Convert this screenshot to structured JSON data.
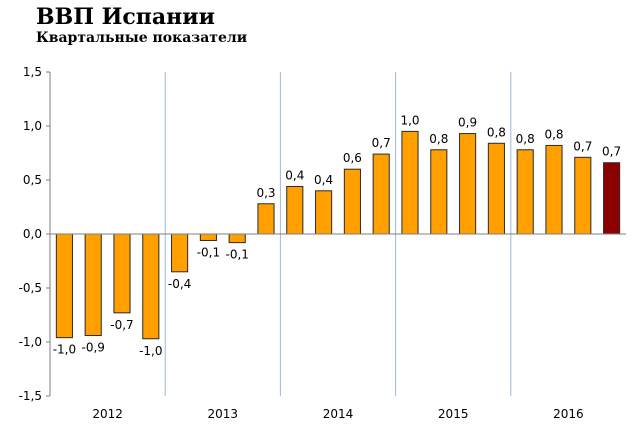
{
  "title": "ВВП Испании",
  "subtitle": "Квартальные показатели",
  "chart_data": {
    "type": "bar",
    "title": "ВВП Испании",
    "subtitle": "Квартальные показатели",
    "xlabel": "",
    "ylabel": "",
    "ylim": [
      -1.5,
      1.5
    ],
    "yticks": [
      -1.5,
      -1.0,
      -0.5,
      0.0,
      0.5,
      1.0,
      1.5
    ],
    "ytick_labels": [
      "-1,5",
      "-1,0",
      "-0,5",
      "0,0",
      "0,5",
      "1,0",
      "1,5"
    ],
    "groups": [
      "2012",
      "2013",
      "2014",
      "2015",
      "2016"
    ],
    "categories": [
      "2012 Q1",
      "2012 Q2",
      "2012 Q3",
      "2012 Q4",
      "2013 Q1",
      "2013 Q2",
      "2013 Q3",
      "2013 Q4",
      "2014 Q1",
      "2014 Q2",
      "2014 Q3",
      "2014 Q4",
      "2015 Q1",
      "2015 Q2",
      "2015 Q3",
      "2015 Q4",
      "2016 Q1",
      "2016 Q2",
      "2016 Q3",
      "2016 Q4"
    ],
    "values": [
      -0.96,
      -0.94,
      -0.73,
      -0.97,
      -0.35,
      -0.06,
      -0.08,
      0.28,
      0.44,
      0.4,
      0.6,
      0.74,
      0.95,
      0.78,
      0.93,
      0.84,
      0.78,
      0.82,
      0.71,
      0.66
    ],
    "value_labels": [
      "-1,0",
      "-0,9",
      "-0,7",
      "-1,0",
      "-0,4",
      "-0,1",
      "-0,1",
      "0,3",
      "0,4",
      "0,4",
      "0,6",
      "0,7",
      "1,0",
      "0,8",
      "0,9",
      "0,8",
      "0,8",
      "0,8",
      "0,7",
      "0,7"
    ],
    "colors": {
      "bar": "#ff9f00",
      "bar_outline": "#2a2a2a",
      "highlight": "#8b0000",
      "separator": "#9db6d8",
      "axis": "#7f7f7f"
    },
    "highlight_index": 19,
    "grid": false,
    "group_separators": true
  }
}
